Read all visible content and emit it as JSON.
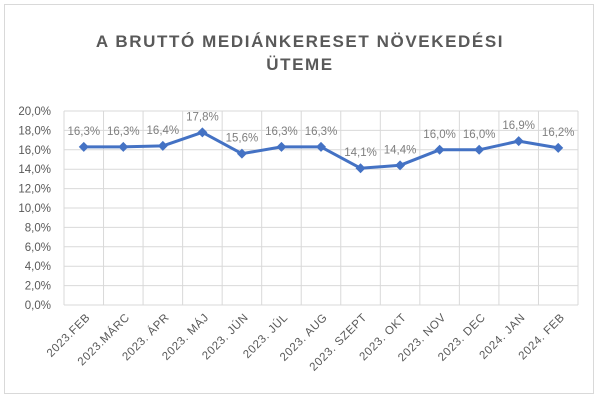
{
  "chart_data": {
    "type": "line",
    "title_line1": "A BRUTTÓ MEDIÁNKERESET NÖVEKEDÉSI",
    "title_line2": "ÜTEME",
    "categories": [
      "2023.FEB",
      "2023.MÁRC",
      "2023. ÁPR",
      "2023. MÁJ",
      "2023. JÚN",
      "2023. JÚL",
      "2023. AUG",
      "2023. SZEPT",
      "2023. OKT",
      "2023. NOV",
      "2023. DEC",
      "2024. JAN",
      "2024. FEB"
    ],
    "values": [
      16.3,
      16.3,
      16.4,
      17.8,
      15.6,
      16.3,
      16.3,
      14.1,
      14.4,
      16.0,
      16.0,
      16.9,
      16.2
    ],
    "data_labels": [
      "16,3%",
      "16,3%",
      "16,4%",
      "17,8%",
      "15,6%",
      "16,3%",
      "16,3%",
      "14,1%",
      "14,4%",
      "16,0%",
      "16,0%",
      "16,9%",
      "16,2%"
    ],
    "y_ticks": [
      "0,0%",
      "2,0%",
      "4,0%",
      "6,0%",
      "8,0%",
      "10,0%",
      "12,0%",
      "14,0%",
      "16,0%",
      "18,0%",
      "20,0%"
    ],
    "ylim": [
      0,
      20
    ],
    "grid": true,
    "line_color": "#4472c4",
    "grid_color": "#d9d9d9"
  }
}
